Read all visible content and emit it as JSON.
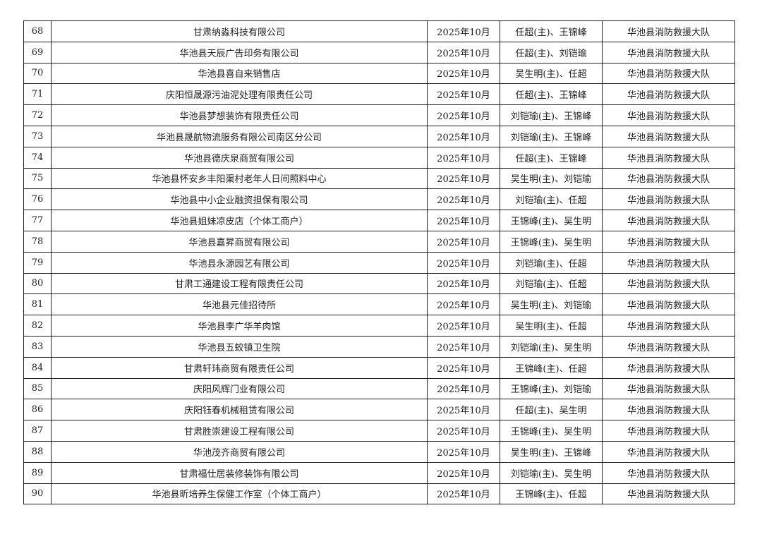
{
  "rows": [
    {
      "no": "68",
      "company": "甘肃纳淼科技有限公司",
      "date": "2025年10月",
      "inspectors": "任超(主)、王锦峰",
      "unit": "华池县消防救援大队"
    },
    {
      "no": "69",
      "company": "华池县天辰广告印务有限公司",
      "date": "2025年10月",
      "inspectors": "任超(主)、刘铠瑜",
      "unit": "华池县消防救援大队"
    },
    {
      "no": "70",
      "company": "华池县喜自来销售店",
      "date": "2025年10月",
      "inspectors": "吴生明(主)、任超",
      "unit": "华池县消防救援大队"
    },
    {
      "no": "71",
      "company": "庆阳恒晟源污油泥处理有限责任公司",
      "date": "2025年10月",
      "inspectors": "任超(主)、王锦峰",
      "unit": "华池县消防救援大队"
    },
    {
      "no": "72",
      "company": "华池县梦想装饰有限责任公司",
      "date": "2025年10月",
      "inspectors": "刘铠瑜(主)、王锦峰",
      "unit": "华池县消防救援大队"
    },
    {
      "no": "73",
      "company": "华池县晟航物流服务有限公司南区分公司",
      "date": "2025年10月",
      "inspectors": "刘铠瑜(主)、王锦峰",
      "unit": "华池县消防救援大队"
    },
    {
      "no": "74",
      "company": "华池县德庆泉商贸有限公司",
      "date": "2025年10月",
      "inspectors": "任超(主)、王锦峰",
      "unit": "华池县消防救援大队"
    },
    {
      "no": "75",
      "company": "华池县怀安乡丰阳渠村老年人日间照料中心",
      "date": "2025年10月",
      "inspectors": "吴生明(主)、刘铠瑜",
      "unit": "华池县消防救援大队"
    },
    {
      "no": "76",
      "company": "华池县中小企业融资担保有限公司",
      "date": "2025年10月",
      "inspectors": "刘铠瑜(主)、任超",
      "unit": "华池县消防救援大队"
    },
    {
      "no": "77",
      "company": "华池县姐妹凉皮店（个体工商户）",
      "date": "2025年10月",
      "inspectors": "王锦峰(主)、吴生明",
      "unit": "华池县消防救援大队"
    },
    {
      "no": "78",
      "company": "华池县嘉昇商贸有限公司",
      "date": "2025年10月",
      "inspectors": "王锦峰(主)、吴生明",
      "unit": "华池县消防救援大队"
    },
    {
      "no": "79",
      "company": "华池县永源园艺有限公司",
      "date": "2025年10月",
      "inspectors": "刘铠瑜(主)、任超",
      "unit": "华池县消防救援大队"
    },
    {
      "no": "80",
      "company": "甘肃工通建设工程有限责任公司",
      "date": "2025年10月",
      "inspectors": "刘铠瑜(主)、任超",
      "unit": "华池县消防救援大队"
    },
    {
      "no": "81",
      "company": "华池县元佳招待所",
      "date": "2025年10月",
      "inspectors": "吴生明(主)、刘铠瑜",
      "unit": "华池县消防救援大队"
    },
    {
      "no": "82",
      "company": "华池县李广华羊肉馆",
      "date": "2025年10月",
      "inspectors": "吴生明(主)、任超",
      "unit": "华池县消防救援大队"
    },
    {
      "no": "83",
      "company": "华池县五蛟镇卫生院",
      "date": "2025年10月",
      "inspectors": "刘铠瑜(主)、吴生明",
      "unit": "华池县消防救援大队"
    },
    {
      "no": "84",
      "company": "甘肃轩玮商贸有限责任公司",
      "date": "2025年10月",
      "inspectors": "王锦峰(主)、任超",
      "unit": "华池县消防救援大队"
    },
    {
      "no": "85",
      "company": "庆阳风辉门业有限公司",
      "date": "2025年10月",
      "inspectors": "王锦峰(主)、刘铠瑜",
      "unit": "华池县消防救援大队"
    },
    {
      "no": "86",
      "company": "庆阳钰春机械租赁有限公司",
      "date": "2025年10月",
      "inspectors": "任超(主)、吴生明",
      "unit": "华池县消防救援大队"
    },
    {
      "no": "87",
      "company": "甘肃胜崇建设工程有限公司",
      "date": "2025年10月",
      "inspectors": "王锦峰(主)、吴生明",
      "unit": "华池县消防救援大队"
    },
    {
      "no": "88",
      "company": "华池茂齐商贸有限公司",
      "date": "2025年10月",
      "inspectors": "吴生明(主)、王锦峰",
      "unit": "华池县消防救援大队"
    },
    {
      "no": "89",
      "company": "甘肃福仕居装修装饰有限公司",
      "date": "2025年10月",
      "inspectors": "刘铠瑜(主)、吴生明",
      "unit": "华池县消防救援大队"
    },
    {
      "no": "90",
      "company": "华池县昕培养生保健工作室（个体工商户）",
      "date": "2025年10月",
      "inspectors": "王锦峰(主)、任超",
      "unit": "华池县消防救援大队"
    }
  ]
}
